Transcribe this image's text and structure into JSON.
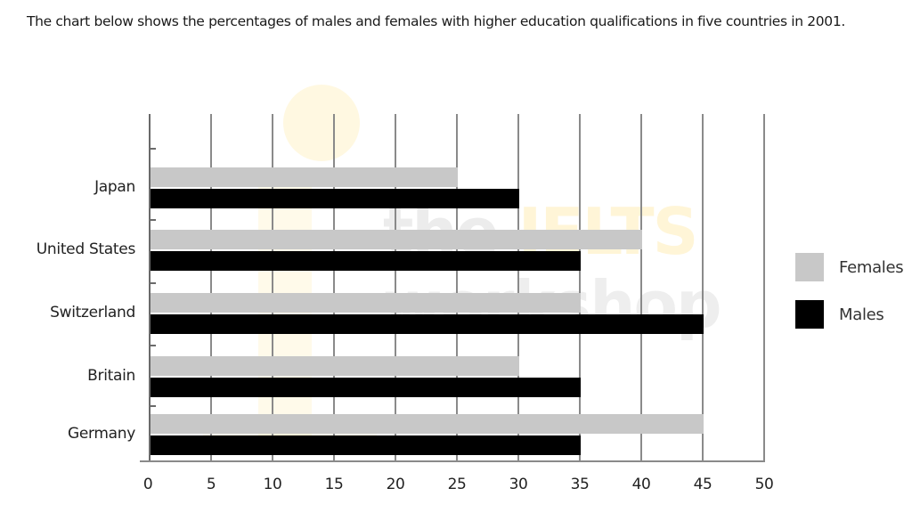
{
  "title": "The chart below shows the percentages of males and females with higher education qualifications in five countries in 2001.",
  "legend": {
    "females": {
      "label": "Females",
      "color": "#c8c8c8"
    },
    "males": {
      "label": "Males",
      "color": "#000000"
    }
  },
  "watermark": {
    "line1_a": "the ",
    "line1_b": "IELTS",
    "line2": "workshop"
  },
  "x_ticks": [
    "0",
    "5",
    "10",
    "15",
    "20",
    "25",
    "30",
    "35",
    "40",
    "45",
    "50"
  ],
  "countries": [
    "Japan",
    "United States",
    "Switzerland",
    "Britain",
    "Germany"
  ],
  "chart_data": {
    "type": "bar",
    "orientation": "horizontal",
    "title": "The chart below shows the percentages of males and females with higher education qualifications in five countries in 2001.",
    "categories": [
      "Japan",
      "United States",
      "Switzerland",
      "Britain",
      "Germany"
    ],
    "series": [
      {
        "name": "Females",
        "color": "#c8c8c8",
        "values": [
          25,
          40,
          35,
          30,
          45
        ]
      },
      {
        "name": "Males",
        "color": "#000000",
        "values": [
          30,
          35,
          45,
          35,
          35
        ]
      }
    ],
    "xlabel": "",
    "ylabel": "",
    "xlim": [
      0,
      50
    ],
    "x_ticks": [
      0,
      5,
      10,
      15,
      20,
      25,
      30,
      35,
      40,
      45,
      50
    ],
    "grid": "vertical",
    "legend_position": "right"
  }
}
